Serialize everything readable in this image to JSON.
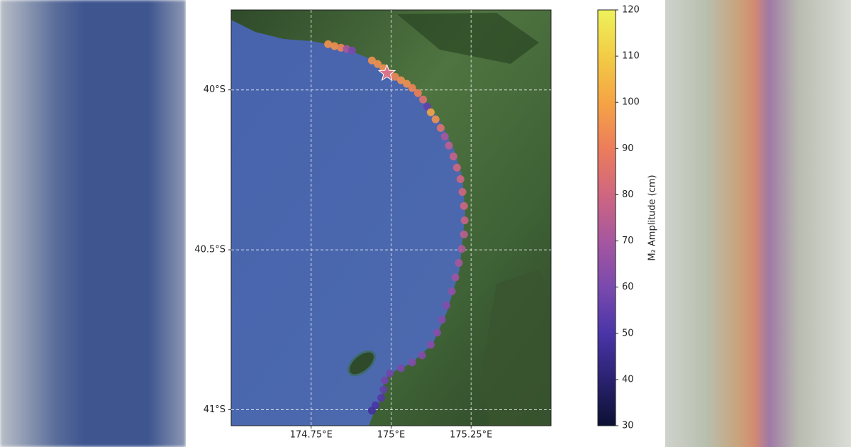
{
  "chart_data": {
    "type": "scatter",
    "xlim": [
      174.5,
      175.5
    ],
    "ylim": [
      -41.05,
      -39.75
    ],
    "xticks": [
      {
        "value": 174.75,
        "label": "174.75°E"
      },
      {
        "value": 175,
        "label": "175°E"
      },
      {
        "value": 175.25,
        "label": "175.25°E"
      }
    ],
    "yticks": [
      {
        "value": -40,
        "label": "40°S"
      },
      {
        "value": -40.5,
        "label": "40.5°S"
      },
      {
        "value": -41,
        "label": "41°S"
      }
    ],
    "grid": true,
    "x": [
      174.803,
      174.823,
      174.843,
      174.861,
      174.878,
      174.94,
      174.958,
      174.976,
      174.996,
      175.013,
      175.031,
      175.049,
      175.066,
      175.084,
      175.1,
      175.113,
      175.124,
      175.139,
      175.155,
      175.168,
      175.181,
      175.195,
      175.206,
      175.217,
      175.223,
      175.228,
      175.23,
      175.228,
      175.221,
      175.212,
      175.201,
      175.19,
      175.173,
      175.159,
      175.144,
      175.124,
      175.097,
      175.066,
      175.031,
      174.996,
      174.98,
      174.976,
      174.969,
      174.951,
      174.94
    ],
    "y": [
      -39.857,
      -39.863,
      -39.868,
      -39.872,
      -39.877,
      -39.908,
      -39.919,
      -39.932,
      -39.948,
      -39.959,
      -39.97,
      -39.981,
      -39.994,
      -40.01,
      -40.03,
      -40.052,
      -40.07,
      -40.092,
      -40.119,
      -40.146,
      -40.174,
      -40.208,
      -40.243,
      -40.279,
      -40.319,
      -40.363,
      -40.408,
      -40.452,
      -40.497,
      -40.541,
      -40.586,
      -40.63,
      -40.674,
      -40.719,
      -40.759,
      -40.797,
      -40.83,
      -40.852,
      -40.87,
      -40.886,
      -40.908,
      -40.937,
      -40.963,
      -40.986,
      -41.003
    ],
    "values": [
      95,
      95,
      92,
      70,
      60,
      95,
      95,
      95,
      90,
      92,
      95,
      95,
      92,
      90,
      85,
      55,
      100,
      95,
      85,
      70,
      75,
      78,
      80,
      80,
      80,
      80,
      78,
      75,
      72,
      70,
      68,
      65,
      62,
      62,
      63,
      63,
      62,
      62,
      60,
      58,
      58,
      55,
      52,
      50,
      48
    ],
    "marker": {
      "x": 174.987,
      "y": -39.948,
      "color": "#d9748a"
    },
    "colormap": [
      "#0c1033",
      "#2a2270",
      "#4a35a8",
      "#7a4aae",
      "#a6579f",
      "#cf6680",
      "#ec7d5b",
      "#f5a445",
      "#f2cc45",
      "#eef25c"
    ],
    "clim": [
      30,
      120
    ],
    "cticks": [
      30,
      40,
      50,
      60,
      70,
      80,
      90,
      100,
      110,
      120
    ],
    "clabel": "M₂ Amplitude (cm)"
  }
}
